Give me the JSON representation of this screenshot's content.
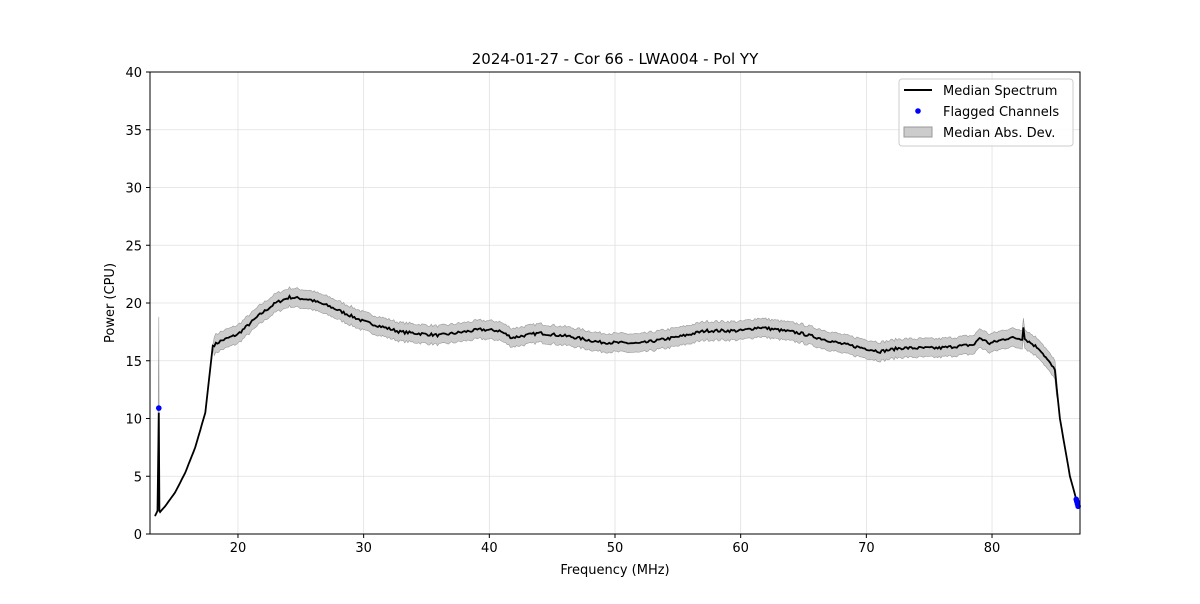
{
  "chart_data": {
    "type": "line",
    "title": "2024-01-27 - Cor 66 - LWA004 - Pol YY",
    "xlabel": "Frequency (MHz)",
    "ylabel": "Power (CPU)",
    "xlim": [
      13,
      87
    ],
    "ylim": [
      0,
      40
    ],
    "xticks": [
      20,
      30,
      40,
      50,
      60,
      70,
      80
    ],
    "yticks": [
      0,
      5,
      10,
      15,
      20,
      25,
      30,
      35,
      40
    ],
    "grid": true,
    "legend_position": "top-right",
    "legend": [
      "Median Spectrum",
      "Flagged Channels",
      "Median Abs. Dev."
    ],
    "colors": {
      "line": "#000000",
      "flagged": "#0000ff",
      "band": "#cccccc",
      "band_edge": "#999999"
    },
    "mad_halfwidth": 0.8,
    "median_spectrum": [
      [
        13.4,
        1.56
      ],
      [
        13.6,
        2.0
      ],
      [
        13.7,
        10.5
      ],
      [
        13.75,
        2.0
      ],
      [
        13.8,
        1.9
      ],
      [
        14.2,
        2.4
      ],
      [
        15.0,
        3.6
      ],
      [
        15.8,
        5.3
      ],
      [
        16.6,
        7.5
      ],
      [
        17.4,
        10.5
      ],
      [
        18.0,
        16.3
      ],
      [
        18.6,
        16.7
      ],
      [
        20,
        17.3
      ],
      [
        21.75,
        19.0
      ],
      [
        23,
        20.0
      ],
      [
        24.1,
        20.5
      ],
      [
        25.7,
        20.3
      ],
      [
        27.3,
        19.7
      ],
      [
        30,
        18.4
      ],
      [
        32.9,
        17.5
      ],
      [
        36,
        17.2
      ],
      [
        39.3,
        17.7
      ],
      [
        40.8,
        17.6
      ],
      [
        41.8,
        17.0
      ],
      [
        44,
        17.4
      ],
      [
        46.4,
        17.1
      ],
      [
        48.8,
        16.6
      ],
      [
        52,
        16.5
      ],
      [
        55.2,
        17.1
      ],
      [
        57.2,
        17.6
      ],
      [
        60,
        17.6
      ],
      [
        61.5,
        17.9
      ],
      [
        64.7,
        17.4
      ],
      [
        67.9,
        16.5
      ],
      [
        71.1,
        15.8
      ],
      [
        72.7,
        16.1
      ],
      [
        75.8,
        16.1
      ],
      [
        78.6,
        16.4
      ],
      [
        79.0,
        17.0
      ],
      [
        79.8,
        16.5
      ],
      [
        81.4,
        17.0
      ],
      [
        82.4,
        16.9
      ],
      [
        82.5,
        18.0
      ],
      [
        82.6,
        16.9
      ],
      [
        83.8,
        16.0
      ],
      [
        85.0,
        14.2
      ],
      [
        85.4,
        10.0
      ],
      [
        86.2,
        5.0
      ],
      [
        86.7,
        3.0
      ],
      [
        86.9,
        2.4
      ]
    ],
    "flagged_channels": [
      [
        13.7,
        10.9
      ],
      [
        86.7,
        3.0
      ],
      [
        86.75,
        2.8
      ],
      [
        86.8,
        2.6
      ],
      [
        86.85,
        2.4
      ]
    ]
  }
}
